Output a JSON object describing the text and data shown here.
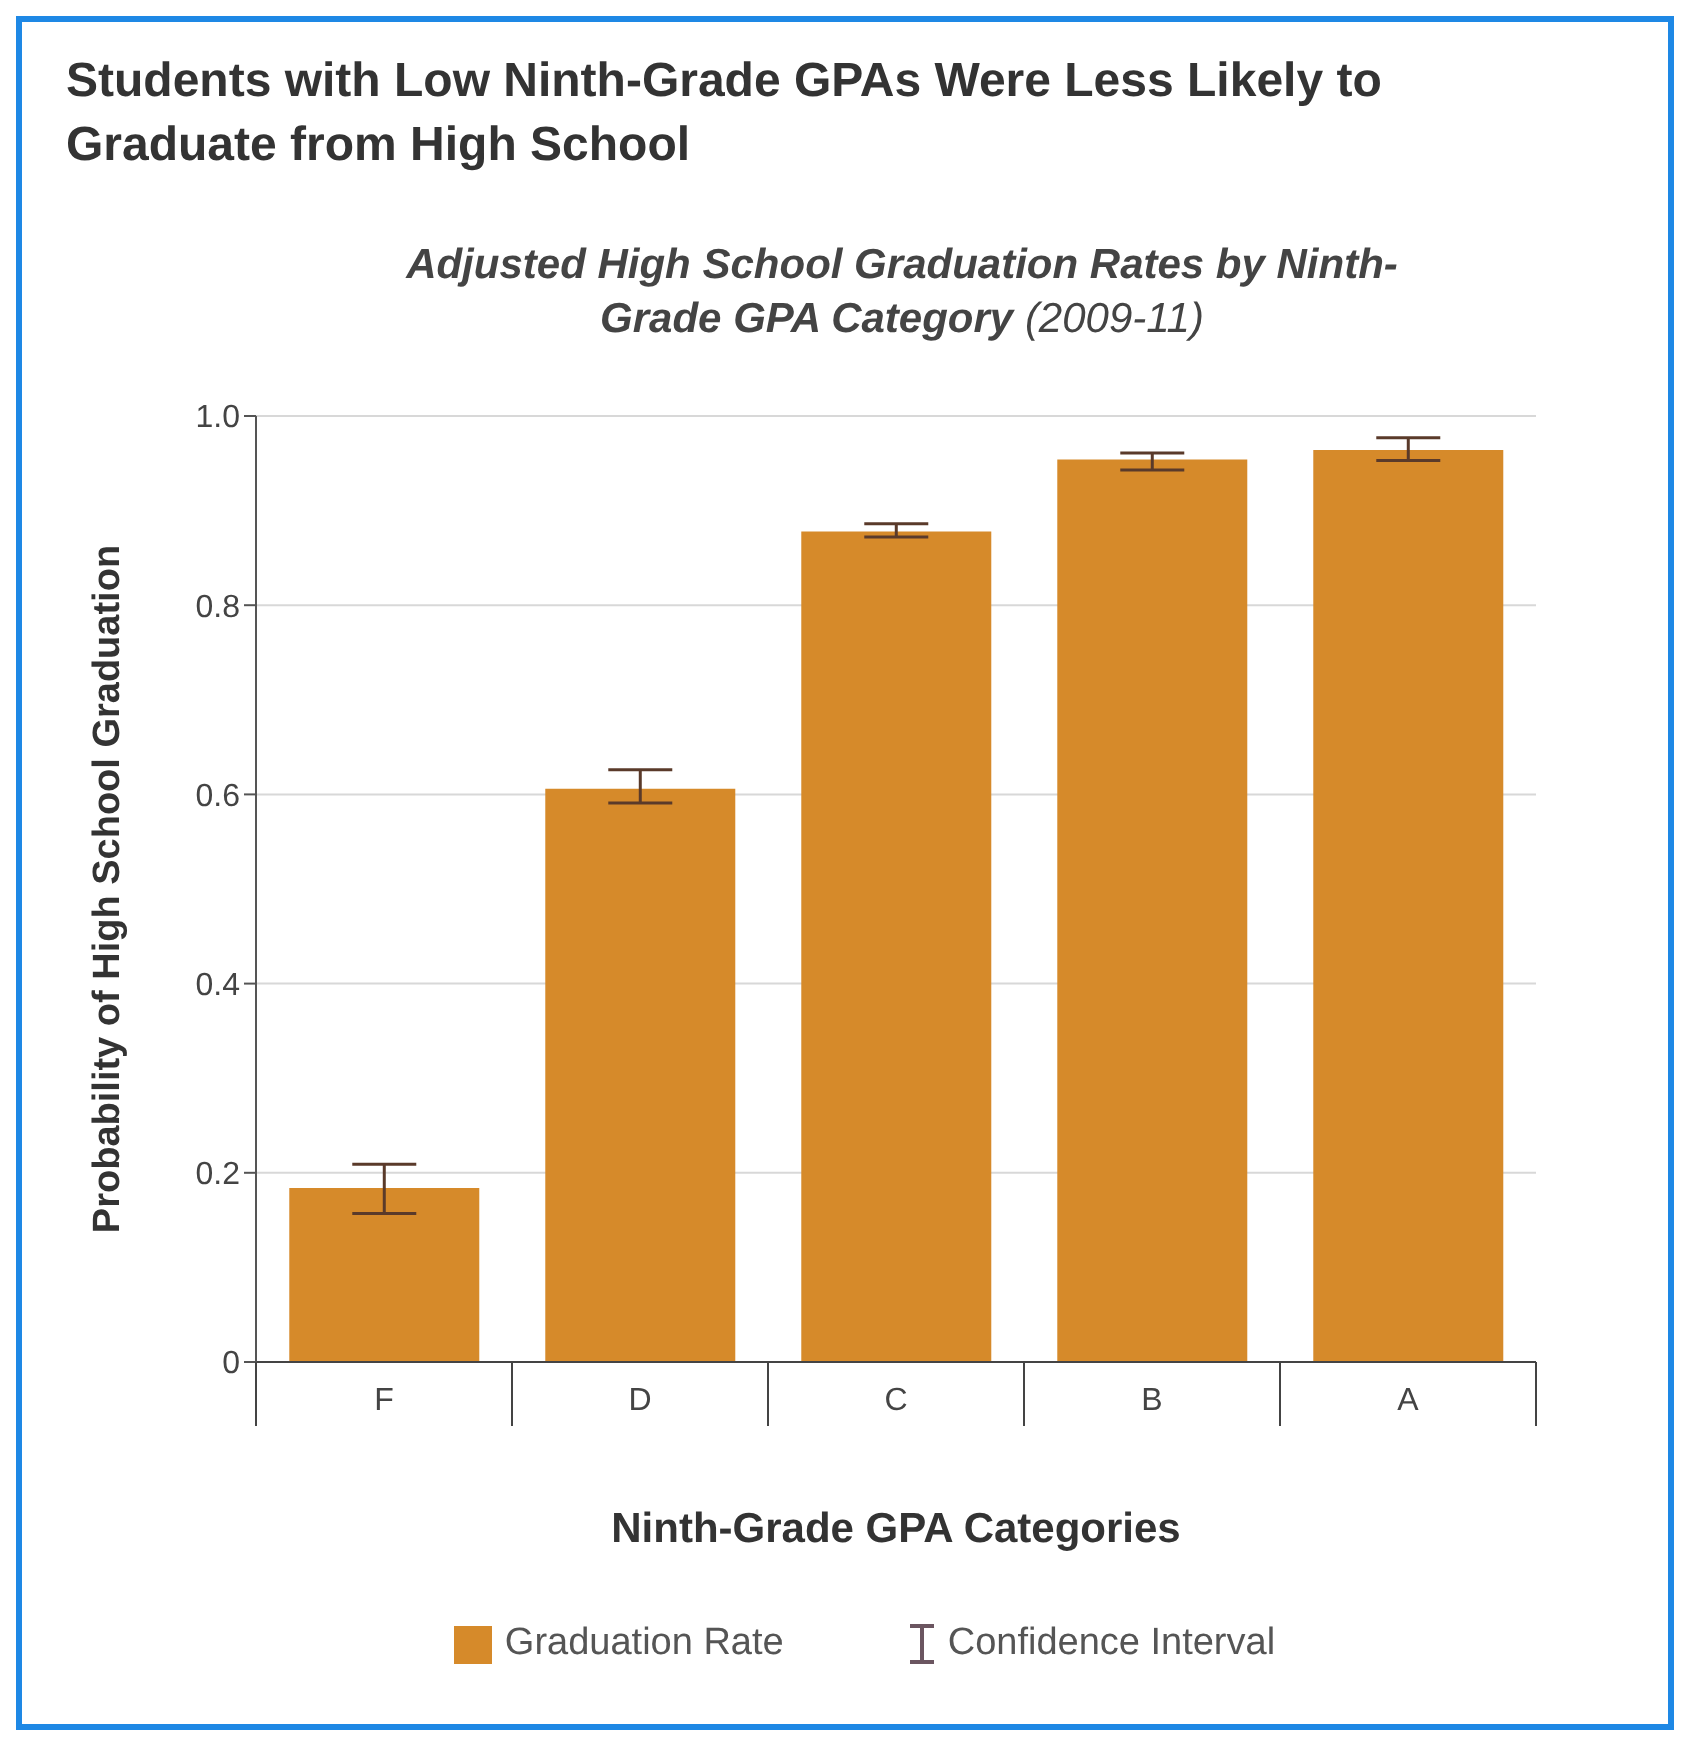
{
  "chart_data": {
    "type": "bar",
    "title": "Students with Low Ninth-Grade GPAs Were Less Likely to Graduate from High School",
    "subtitle": "Adjusted High School Graduation Rates by Ninth-Grade GPA Category (2009-11)",
    "xlabel": "Ninth-Grade GPA Categories",
    "ylabel": "Probability of High School Graduation",
    "categories": [
      "F",
      "D",
      "C",
      "B",
      "A"
    ],
    "series": [
      {
        "name": "Graduation Rate",
        "color": "#d68a2a",
        "values": [
          0.184,
          0.606,
          0.878,
          0.954,
          0.964
        ],
        "errors": [
          [
            0.157,
            0.209
          ],
          [
            0.591,
            0.626
          ],
          [
            0.872,
            0.886
          ],
          [
            0.943,
            0.961
          ],
          [
            0.953,
            0.977
          ]
        ]
      }
    ],
    "ylim": [
      0,
      1
    ],
    "yticks": [
      {
        "value": 0,
        "label": "0"
      },
      0.2,
      0.4,
      0.6,
      0.8,
      {
        "value": 1,
        "label": "1.0"
      }
    ],
    "grid": "y",
    "legend": "bottom",
    "annotations": [
      "Confidence Interval"
    ]
  }
}
